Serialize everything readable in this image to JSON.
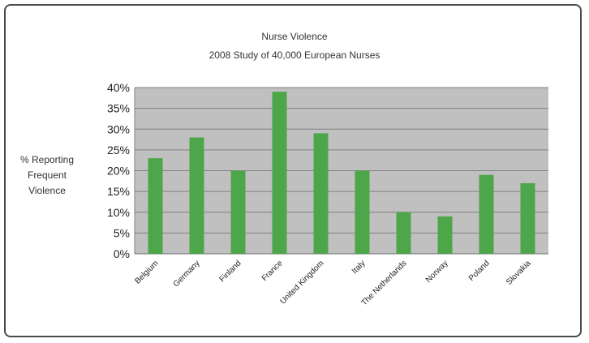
{
  "chart_data": {
    "type": "bar",
    "title": "Nurse Violence",
    "subtitle": "2008 Study of 40,000 European Nurses",
    "xlabel": "",
    "ylabel_lines": [
      "% Reporting",
      "Frequent",
      "Violence"
    ],
    "categories": [
      "Belgium",
      "Germany",
      "Finland",
      "France",
      "United Kingdom",
      "Italy",
      "The Netherlands",
      "Norway",
      "Poland",
      "Slovakia"
    ],
    "values": [
      23,
      28,
      20,
      39,
      29,
      20,
      10,
      9,
      19,
      17
    ],
    "ylim": [
      0,
      40
    ],
    "yticks": [
      "0%",
      "5%",
      "10%",
      "15%",
      "20%",
      "25%",
      "30%",
      "35%",
      "40%"
    ],
    "grid": true,
    "legend": "none"
  },
  "colors": {
    "bar": "#4ea64a",
    "plot_bg": "#c0c0c0",
    "grid": "#808080",
    "frame": "#4a4a4a"
  }
}
